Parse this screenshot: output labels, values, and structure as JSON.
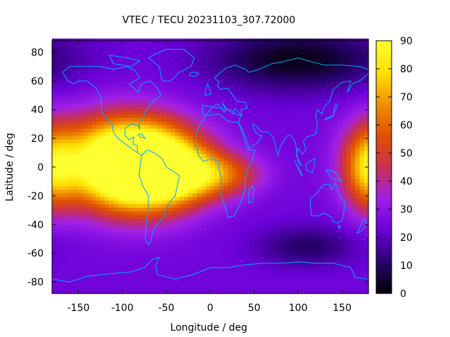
{
  "chart_data": {
    "type": "heatmap",
    "title": "VTEC / TECU 20231103_307.72000",
    "xlabel": "Longitude / deg",
    "ylabel": "Latitude / deg",
    "xlim": [
      -180,
      180
    ],
    "ylim": [
      -88,
      88
    ],
    "x_ticks": [
      {
        "value": -150,
        "label": "-150"
      },
      {
        "value": -100,
        "label": "-100"
      },
      {
        "value": -50,
        "label": "-50"
      },
      {
        "value": 0,
        "label": "0"
      },
      {
        "value": 50,
        "label": "50"
      },
      {
        "value": 100,
        "label": "100"
      },
      {
        "value": 150,
        "label": "150"
      }
    ],
    "y_ticks": [
      {
        "value": 80,
        "label": "80"
      },
      {
        "value": 60,
        "label": "60"
      },
      {
        "value": 40,
        "label": "40"
      },
      {
        "value": 20,
        "label": "20"
      },
      {
        "value": 0,
        "label": "0"
      },
      {
        "value": -20,
        "label": "-20"
      },
      {
        "value": -40,
        "label": "-40"
      },
      {
        "value": -60,
        "label": "-60"
      },
      {
        "value": -80,
        "label": "-80"
      }
    ],
    "colorbar": {
      "range": [
        0,
        90
      ],
      "ticks": [
        {
          "value": 90,
          "label": "90"
        },
        {
          "value": 80,
          "label": "80"
        },
        {
          "value": 70,
          "label": "70"
        },
        {
          "value": 60,
          "label": "60"
        },
        {
          "value": 50,
          "label": "50"
        },
        {
          "value": 40,
          "label": "40"
        },
        {
          "value": 30,
          "label": "30"
        },
        {
          "value": 20,
          "label": "20"
        },
        {
          "value": 10,
          "label": "10"
        },
        {
          "value": 0,
          "label": "0"
        }
      ],
      "colormap": [
        "#000000",
        "#2a0070",
        "#6a00d8",
        "#a020e8",
        "#c83050",
        "#e05000",
        "#f09000",
        "#ffe000",
        "#ffff30"
      ]
    },
    "grid_resolution": {
      "lon_step": 5,
      "lat_step": 2.5
    },
    "features": [
      {
        "lon": -75,
        "lat": 0,
        "value": 88,
        "sigma_lon": 45,
        "sigma_lat": 20
      },
      {
        "lon": -110,
        "lat": 5,
        "value": 45,
        "sigma_lon": 50,
        "sigma_lat": 22
      },
      {
        "lon": -30,
        "lat": -5,
        "value": 30,
        "sigma_lon": 35,
        "sigma_lat": 12
      },
      {
        "lon": 20,
        "lat": -5,
        "value": 22,
        "sigma_lon": 30,
        "sigma_lat": 10
      },
      {
        "lon": 180,
        "lat": 0,
        "value": 42,
        "sigma_lon": 20,
        "sigma_lat": 20
      },
      {
        "lon": 100,
        "lat": 75,
        "value": -22,
        "sigma_lon": 70,
        "sigma_lat": 15
      },
      {
        "lon": 110,
        "lat": -55,
        "value": -14,
        "sigma_lon": 40,
        "sigma_lat": 10
      }
    ],
    "background_value": 24,
    "coastline_color": "#00a8ff"
  }
}
